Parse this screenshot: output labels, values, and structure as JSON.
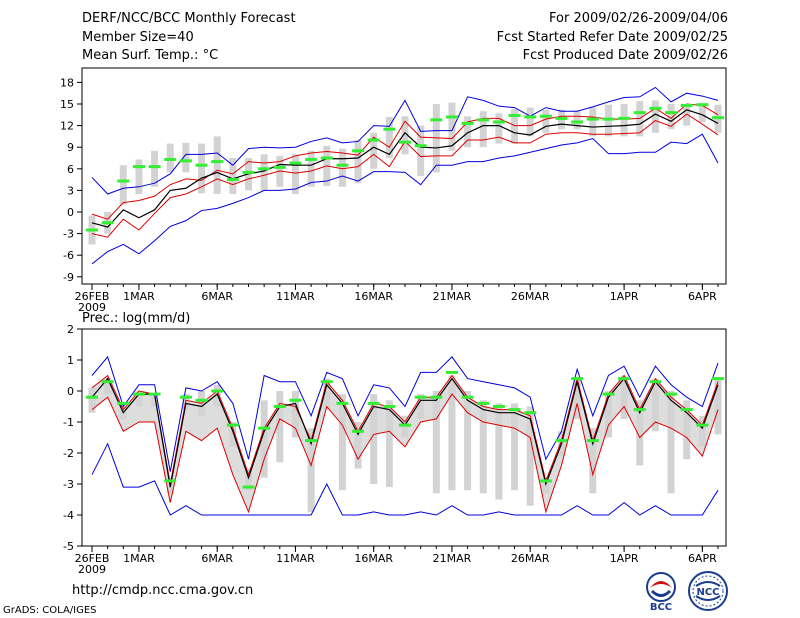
{
  "header": {
    "title": "DERF/NCC/BCC Monthly Forecast",
    "member": "Member Size=40",
    "variable": "Mean Surf. Temp.: °C",
    "period": "For 2009/02/26-2009/04/06",
    "started": "Fcst Started Refer Date 2009/02/25",
    "produced": "Fcst Produced Date 2009/02/26"
  },
  "footer": {
    "url": "http://cmdp.ncc.cma.gov.cn",
    "credit": "GrADS: COLA/IGES",
    "logo_left": "BCC",
    "logo_right": "NCC"
  },
  "colors": {
    "envelope": "#0000dd",
    "spread": "#dd0000",
    "mean": "#000000",
    "box": "#d3d3d3",
    "marker": "#33ee33",
    "fill": "#dddddd"
  },
  "chart_data": [
    {
      "type": "line",
      "title": "Mean Surf. Temp.: °C",
      "ylim": [
        -10,
        20
      ],
      "yticks": [
        -9,
        -6,
        -3,
        0,
        3,
        6,
        9,
        12,
        15,
        18
      ],
      "xtick_labels": [
        "26FEB",
        "1MAR",
        "6MAR",
        "11MAR",
        "16MAR",
        "21MAR",
        "26MAR",
        "1APR",
        "6APR"
      ],
      "xtick_days": [
        0,
        3,
        8,
        13,
        18,
        23,
        28,
        34,
        39
      ],
      "xsub_label": "2009",
      "days": 40,
      "series": [
        {
          "name": "max",
          "values": [
            4.8,
            2.5,
            3.3,
            3.5,
            4.0,
            5.3,
            8.0,
            8.0,
            8.2,
            6.5,
            8.8,
            9.0,
            8.9,
            9.0,
            9.8,
            10.3,
            9.6,
            9.8,
            12.0,
            11.9,
            15.5,
            11.2,
            11.3,
            11.3,
            16.0,
            15.5,
            14.7,
            14.5,
            13.3,
            14.5,
            14.0,
            14.0,
            14.6,
            15.3,
            15.9,
            16.0,
            17.3,
            15.3,
            16.5,
            16.1,
            15.5
          ]
        },
        {
          "name": "upper",
          "values": [
            -0.3,
            -1.0,
            1.3,
            1.6,
            2.2,
            3.8,
            4.6,
            4.4,
            5.8,
            5.3,
            7.0,
            6.8,
            7.0,
            7.8,
            8.2,
            8.4,
            8.2,
            7.9,
            10.4,
            9.0,
            12.6,
            10.4,
            10.3,
            10.2,
            12.5,
            13.0,
            13.0,
            12.0,
            12.0,
            12.9,
            13.3,
            13.3,
            13.2,
            12.9,
            12.9,
            13.0,
            14.4,
            13.0,
            15.0,
            14.8,
            13.5
          ]
        },
        {
          "name": "mean",
          "values": [
            -1.5,
            -2.1,
            0.3,
            -0.8,
            0.3,
            3.0,
            3.3,
            4.7,
            5.5,
            4.6,
            5.3,
            5.7,
            6.6,
            6.5,
            6.5,
            7.4,
            7.4,
            7.5,
            9.0,
            8.0,
            11.0,
            9.0,
            8.9,
            9.2,
            11.0,
            12.0,
            12.0,
            11.0,
            10.7,
            11.9,
            12.2,
            12.0,
            11.8,
            11.9,
            12.0,
            12.2,
            13.6,
            12.6,
            14.2,
            13.5,
            12.3
          ]
        },
        {
          "name": "lower",
          "values": [
            -3.0,
            -3.5,
            -1.0,
            -2.5,
            -0.2,
            2.0,
            2.5,
            3.5,
            4.6,
            3.8,
            4.6,
            5.1,
            5.7,
            5.4,
            5.7,
            6.4,
            6.0,
            6.3,
            8.0,
            6.3,
            9.8,
            7.7,
            7.8,
            7.8,
            10.0,
            10.0,
            10.4,
            9.6,
            9.6,
            10.8,
            11.0,
            11.0,
            10.8,
            10.8,
            10.9,
            11.0,
            12.7,
            11.9,
            13.6,
            12.2,
            10.7
          ]
        },
        {
          "name": "min",
          "values": [
            -7.2,
            -5.5,
            -4.5,
            -5.8,
            -4.0,
            -2.0,
            -1.2,
            0.2,
            0.5,
            1.2,
            2.0,
            3.0,
            3.0,
            3.2,
            4.1,
            4.3,
            5.0,
            4.3,
            5.6,
            5.6,
            5.5,
            3.8,
            6.5,
            6.5,
            7.0,
            7.0,
            7.5,
            7.8,
            8.3,
            8.8,
            9.3,
            9.6,
            10.2,
            8.1,
            8.1,
            8.3,
            8.3,
            9.7,
            9.5,
            10.8,
            6.8
          ]
        },
        {
          "name": "marker",
          "values": [
            -2.5,
            -1.5,
            4.3,
            6.3,
            6.3,
            7.3,
            7.1,
            6.5,
            7.0,
            4.5,
            5.5,
            6.0,
            6.2,
            6.8,
            7.3,
            7.5,
            6.5,
            8.5,
            10.0,
            11.5,
            9.7,
            9.2,
            12.8,
            13.2,
            12.3,
            12.8,
            12.5,
            13.4,
            13.2,
            13.3,
            13.0,
            12.5,
            12.9,
            12.9,
            13.0,
            13.8,
            14.4,
            13.8,
            14.8,
            14.9,
            13.1
          ]
        },
        {
          "name": "box_top",
          "values": [
            -0.5,
            0.0,
            6.5,
            7.3,
            8.5,
            9.5,
            9.6,
            9.5,
            10.5,
            7.5,
            7.5,
            8.0,
            7.8,
            8.0,
            8.5,
            9.2,
            8.8,
            10.0,
            11.0,
            13.2,
            13.3,
            12.0,
            15.0,
            15.2,
            13.3,
            14.0,
            13.7,
            14.3,
            14.5,
            14.2,
            14.2,
            14.0,
            14.5,
            14.9,
            15.0,
            15.4,
            15.5,
            15.0,
            15.0,
            15.1,
            14.9
          ]
        },
        {
          "name": "box_bottom",
          "values": [
            -4.5,
            -3.0,
            1.0,
            2.5,
            3.5,
            5.5,
            5.5,
            2.6,
            2.5,
            2.5,
            3.0,
            3.0,
            3.5,
            2.5,
            3.5,
            3.6,
            3.5,
            4.0,
            6.0,
            7.5,
            8.0,
            5.0,
            5.5,
            8.5,
            9.0,
            9.0,
            9.5,
            9.5,
            10.5,
            11.0,
            11.5,
            11.5,
            10.5,
            10.5,
            10.5,
            10.5,
            11.0,
            11.5,
            12.0,
            12.5,
            11.0
          ]
        }
      ]
    },
    {
      "type": "line",
      "title": "Prec.: log(mm/d)",
      "ylim": [
        -5,
        2
      ],
      "yticks": [
        -5,
        -4,
        -3,
        -2,
        -1,
        0,
        1,
        2
      ],
      "xtick_labels": [
        "26FEB",
        "1MAR",
        "6MAR",
        "11MAR",
        "16MAR",
        "21MAR",
        "26MAR",
        "1APR",
        "6APR"
      ],
      "xtick_days": [
        0,
        3,
        8,
        13,
        18,
        23,
        28,
        34,
        39
      ],
      "xsub_label": "2009",
      "days": 40,
      "series": [
        {
          "name": "max",
          "values": [
            0.5,
            1.1,
            -0.5,
            0.2,
            0.2,
            -2.6,
            0.1,
            0.0,
            0.3,
            -0.4,
            -2.2,
            0.5,
            0.3,
            0.3,
            -0.8,
            0.6,
            0.4,
            -0.8,
            0.2,
            0.1,
            -0.5,
            0.6,
            0.6,
            1.1,
            0.4,
            0.3,
            0.2,
            0.1,
            -0.2,
            -2.2,
            -1.3,
            0.7,
            -0.8,
            0.5,
            0.8,
            -0.2,
            0.8,
            0.2,
            -0.2,
            -0.5,
            0.9
          ]
        },
        {
          "name": "upper",
          "values": [
            0.1,
            0.5,
            -0.6,
            0.0,
            -0.1,
            -3.0,
            -0.3,
            -0.4,
            0.0,
            -1.2,
            -2.7,
            -1.2,
            -0.4,
            -0.5,
            -1.6,
            0.3,
            -0.3,
            -1.3,
            -0.4,
            -0.5,
            -1.0,
            -0.2,
            -0.2,
            0.5,
            -0.2,
            -0.5,
            -0.6,
            -0.6,
            -0.8,
            -2.9,
            -1.6,
            0.4,
            -1.6,
            -0.1,
            0.5,
            -0.6,
            0.4,
            -0.2,
            -0.6,
            -1.1,
            0.3
          ]
        },
        {
          "name": "mean",
          "values": [
            -0.2,
            0.4,
            -0.7,
            -0.1,
            -0.1,
            -3.1,
            -0.4,
            -0.5,
            -0.1,
            -1.3,
            -2.8,
            -1.3,
            -0.5,
            -0.4,
            -1.7,
            0.2,
            -0.4,
            -1.4,
            -0.5,
            -0.6,
            -1.1,
            -0.3,
            -0.3,
            0.4,
            -0.3,
            -0.6,
            -0.7,
            -0.7,
            -0.9,
            -3.0,
            -1.7,
            0.3,
            -1.7,
            -0.2,
            0.4,
            -0.7,
            0.3,
            -0.3,
            -0.7,
            -1.2,
            0.2
          ]
        },
        {
          "name": "lower",
          "values": [
            -0.6,
            -0.2,
            -1.3,
            -1.0,
            -1.0,
            -3.6,
            -1.3,
            -1.6,
            -1.2,
            -2.7,
            -3.9,
            -2.2,
            -0.9,
            -1.2,
            -2.4,
            -0.5,
            -1.1,
            -2.2,
            -1.4,
            -1.3,
            -1.8,
            -1.0,
            -0.9,
            -0.1,
            -0.7,
            -1.0,
            -1.1,
            -1.2,
            -1.5,
            -3.9,
            -2.4,
            -0.4,
            -2.7,
            -1.1,
            -0.5,
            -1.5,
            -1.0,
            -1.2,
            -1.5,
            -2.1,
            -0.6
          ]
        },
        {
          "name": "min",
          "values": [
            -2.7,
            -1.7,
            -3.1,
            -3.1,
            -2.9,
            -4.0,
            -3.7,
            -4.0,
            -4.0,
            -4.0,
            -4.0,
            -4.0,
            -4.0,
            -4.0,
            -4.0,
            -3.0,
            -4.0,
            -4.0,
            -3.9,
            -4.0,
            -4.0,
            -3.9,
            -4.0,
            -3.7,
            -4.0,
            -4.0,
            -3.9,
            -4.0,
            -4.0,
            -4.0,
            -4.0,
            -3.7,
            -4.0,
            -4.0,
            -3.6,
            -4.0,
            -3.7,
            -4.0,
            -4.0,
            -4.0,
            -3.2
          ]
        },
        {
          "name": "marker",
          "values": [
            -0.2,
            0.3,
            -0.4,
            -0.1,
            -0.1,
            -2.9,
            -0.2,
            -0.3,
            0.0,
            -1.1,
            -3.1,
            -1.2,
            -0.5,
            -0.3,
            -1.6,
            0.3,
            -0.4,
            -1.3,
            -0.4,
            -0.5,
            -1.1,
            -0.2,
            -0.2,
            0.6,
            -0.2,
            -0.4,
            -0.5,
            -0.6,
            -0.7,
            -2.9,
            -1.6,
            0.4,
            -1.6,
            -0.1,
            0.4,
            -0.6,
            0.3,
            -0.1,
            -0.6,
            -1.1,
            0.4
          ]
        },
        {
          "name": "box_top",
          "values": [
            0.1,
            0.4,
            -0.5,
            0.0,
            -0.1,
            -2.8,
            -0.1,
            0.0,
            0.2,
            -1.0,
            -2.5,
            -0.3,
            0.0,
            0.0,
            -1.2,
            0.4,
            -0.1,
            -1.0,
            -0.1,
            -0.3,
            -0.8,
            -0.1,
            0.0,
            0.5,
            0.0,
            -0.3,
            -0.4,
            -0.4,
            -0.5,
            -2.8,
            -1.3,
            0.4,
            -1.2,
            0.0,
            0.5,
            -0.3,
            0.4,
            0.0,
            -0.3,
            -0.8,
            0.4
          ]
        },
        {
          "name": "box_bottom",
          "values": [
            -0.7,
            -0.1,
            -0.9,
            -0.5,
            -0.5,
            -3.3,
            -0.6,
            -0.8,
            -0.5,
            -1.8,
            -3.2,
            -2.8,
            -2.3,
            -1.5,
            -3.9,
            -0.6,
            -3.2,
            -2.5,
            -3.0,
            -3.1,
            -1.5,
            -0.9,
            -3.3,
            -3.2,
            -3.2,
            -3.3,
            -3.5,
            -3.2,
            -3.7,
            -3.3,
            -2.1,
            -0.9,
            -3.3,
            -1.5,
            -0.9,
            -2.4,
            -1.3,
            -3.3,
            -2.2,
            -1.8,
            -1.4
          ]
        }
      ]
    }
  ]
}
